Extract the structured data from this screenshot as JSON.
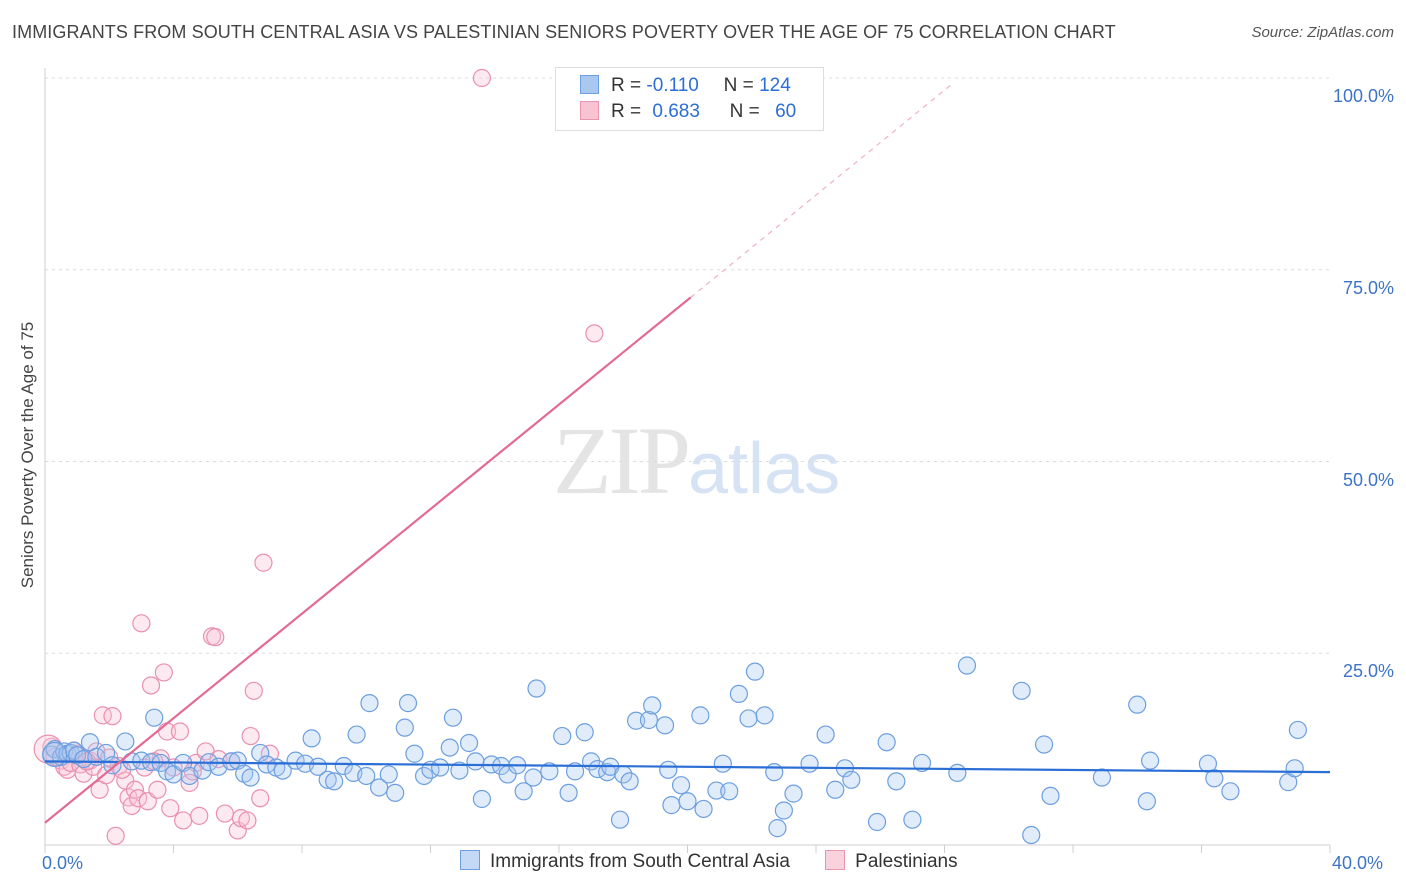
{
  "title": "IMMIGRANTS FROM SOUTH CENTRAL ASIA VS PALESTINIAN SENIORS POVERTY OVER THE AGE OF 75 CORRELATION CHART",
  "source": "Source: ZipAtlas.com",
  "watermark": {
    "zip": "ZIP",
    "atlas": "atlas"
  },
  "legend": {
    "r_label": "R =",
    "n_label": "N =",
    "rows": [
      {
        "r": "-0.110",
        "n": "124",
        "color": "#a9c8f0",
        "border": "#6c9fe0"
      },
      {
        "r": "0.683",
        "n": "60",
        "color": "#f8c4d4",
        "border": "#ea94b0"
      }
    ]
  },
  "colors": {
    "blue": "#6c9fe0",
    "pink": "#ea8fb0",
    "blue_line": "#2b6fd6",
    "pink_line": "#e36a95"
  },
  "chart_data": {
    "type": "scatter",
    "title": "IMMIGRANTS FROM SOUTH CENTRAL ASIA VS PALESTINIAN SENIORS POVERTY OVER THE AGE OF 75 CORRELATION CHART",
    "xlabel": "",
    "ylabel": "Seniors Poverty Over the Age of 75",
    "xlim": [
      0,
      40
    ],
    "ylim": [
      0,
      100
    ],
    "x_tick_labels": [
      "0.0%",
      "40.0%"
    ],
    "y_ticks": [
      25,
      50,
      75,
      100
    ],
    "y_tick_labels": [
      "25.0%",
      "50.0%",
      "75.0%",
      "100.0%"
    ],
    "grid": true,
    "legend_position": "top-center",
    "series": [
      {
        "name": "Immigrants from South Central Asia",
        "color": "#6c9fe0",
        "trend": {
          "x": [
            0,
            40
          ],
          "y": [
            10.9,
            9.5
          ]
        },
        "points": [
          [
            0.2,
            11.8
          ],
          [
            0.3,
            12.5
          ],
          [
            0.5,
            11.5
          ],
          [
            0.6,
            12.2
          ],
          [
            0.7,
            11.9
          ],
          [
            0.8,
            12.0
          ],
          [
            0.9,
            12.3
          ],
          [
            1.0,
            11.7
          ],
          [
            1.2,
            11.2
          ],
          [
            1.4,
            13.4
          ],
          [
            1.6,
            11.5
          ],
          [
            1.9,
            12.0
          ],
          [
            2.1,
            10.4
          ],
          [
            2.5,
            13.5
          ],
          [
            2.7,
            10.9
          ],
          [
            3.0,
            11.0
          ],
          [
            3.3,
            10.8
          ],
          [
            3.4,
            16.6
          ],
          [
            3.6,
            10.7
          ],
          [
            3.8,
            9.6
          ],
          [
            4.0,
            9.2
          ],
          [
            4.3,
            10.7
          ],
          [
            4.5,
            9.0
          ],
          [
            4.9,
            9.7
          ],
          [
            5.1,
            10.8
          ],
          [
            5.4,
            10.2
          ],
          [
            5.8,
            10.9
          ],
          [
            6.0,
            11.0
          ],
          [
            6.2,
            9.3
          ],
          [
            6.4,
            8.8
          ],
          [
            6.7,
            12.0
          ],
          [
            6.9,
            10.5
          ],
          [
            7.2,
            10.1
          ],
          [
            7.4,
            9.7
          ],
          [
            7.8,
            11.0
          ],
          [
            8.1,
            10.6
          ],
          [
            8.3,
            13.9
          ],
          [
            8.5,
            10.2
          ],
          [
            8.8,
            8.5
          ],
          [
            9.0,
            8.3
          ],
          [
            9.3,
            10.3
          ],
          [
            9.6,
            9.4
          ],
          [
            9.7,
            14.4
          ],
          [
            10.0,
            9.0
          ],
          [
            10.1,
            18.5
          ],
          [
            10.4,
            7.5
          ],
          [
            10.7,
            9.2
          ],
          [
            10.9,
            6.8
          ],
          [
            11.2,
            15.3
          ],
          [
            11.3,
            18.5
          ],
          [
            11.5,
            11.9
          ],
          [
            11.8,
            9.0
          ],
          [
            12.0,
            9.8
          ],
          [
            12.3,
            10.1
          ],
          [
            12.6,
            12.7
          ],
          [
            12.7,
            16.6
          ],
          [
            12.9,
            9.7
          ],
          [
            13.2,
            13.3
          ],
          [
            13.4,
            10.9
          ],
          [
            13.6,
            6.0
          ],
          [
            13.9,
            10.5
          ],
          [
            14.2,
            10.3
          ],
          [
            14.4,
            9.2
          ],
          [
            14.7,
            10.4
          ],
          [
            14.9,
            7.0
          ],
          [
            15.2,
            8.8
          ],
          [
            15.3,
            20.4
          ],
          [
            15.7,
            9.6
          ],
          [
            16.1,
            14.2
          ],
          [
            16.3,
            6.8
          ],
          [
            16.5,
            9.6
          ],
          [
            16.8,
            14.7
          ],
          [
            17.0,
            10.9
          ],
          [
            17.2,
            9.9
          ],
          [
            17.5,
            9.5
          ],
          [
            17.6,
            10.2
          ],
          [
            17.9,
            3.3
          ],
          [
            18.0,
            9.2
          ],
          [
            18.2,
            8.3
          ],
          [
            18.4,
            16.2
          ],
          [
            18.8,
            16.3
          ],
          [
            18.9,
            18.2
          ],
          [
            19.3,
            15.6
          ],
          [
            19.4,
            9.8
          ],
          [
            19.5,
            5.2
          ],
          [
            19.8,
            7.8
          ],
          [
            20.0,
            5.7
          ],
          [
            20.4,
            16.9
          ],
          [
            20.5,
            4.7
          ],
          [
            20.9,
            7.1
          ],
          [
            21.1,
            10.6
          ],
          [
            21.3,
            7.0
          ],
          [
            21.6,
            19.7
          ],
          [
            21.9,
            16.5
          ],
          [
            22.1,
            22.6
          ],
          [
            22.4,
            16.9
          ],
          [
            22.7,
            9.5
          ],
          [
            22.8,
            2.2
          ],
          [
            23.0,
            4.5
          ],
          [
            23.3,
            6.7
          ],
          [
            23.8,
            10.6
          ],
          [
            24.3,
            14.4
          ],
          [
            24.6,
            7.2
          ],
          [
            24.9,
            10.0
          ],
          [
            25.1,
            8.5
          ],
          [
            25.9,
            3.0
          ],
          [
            26.2,
            13.4
          ],
          [
            26.5,
            8.3
          ],
          [
            27.3,
            10.7
          ],
          [
            27.0,
            3.3
          ],
          [
            28.4,
            9.4
          ],
          [
            28.7,
            23.4
          ],
          [
            30.4,
            20.1
          ],
          [
            30.7,
            1.3
          ],
          [
            31.1,
            13.1
          ],
          [
            31.3,
            6.4
          ],
          [
            32.9,
            8.8
          ],
          [
            34.0,
            18.3
          ],
          [
            34.3,
            5.7
          ],
          [
            34.4,
            11.0
          ],
          [
            36.2,
            10.6
          ],
          [
            36.4,
            8.7
          ],
          [
            36.9,
            7.0
          ],
          [
            38.7,
            8.2
          ],
          [
            38.9,
            10.0
          ],
          [
            39.0,
            15.0
          ]
        ]
      },
      {
        "name": "Palestinians",
        "color": "#ea8fb0",
        "trend": {
          "x": [
            0,
            20.1
          ],
          "y": [
            2.9,
            71.4
          ]
        },
        "trend_ext": {
          "x": [
            20.1,
            28.2
          ],
          "y": [
            71.4,
            99.1
          ]
        },
        "points": [
          [
            0.2,
            12.8
          ],
          [
            0.3,
            11.5
          ],
          [
            0.5,
            11.0
          ],
          [
            0.6,
            10.2
          ],
          [
            0.7,
            9.8
          ],
          [
            0.8,
            10.7
          ],
          [
            1.0,
            11.9
          ],
          [
            1.1,
            10.5
          ],
          [
            1.2,
            9.3
          ],
          [
            1.4,
            11.0
          ],
          [
            1.5,
            10.2
          ],
          [
            1.6,
            12.2
          ],
          [
            1.7,
            7.2
          ],
          [
            1.8,
            16.9
          ],
          [
            1.9,
            9.1
          ],
          [
            2.1,
            16.8
          ],
          [
            2.2,
            1.2
          ],
          [
            2.3,
            10.3
          ],
          [
            2.5,
            8.4
          ],
          [
            2.6,
            6.2
          ],
          [
            2.7,
            5.1
          ],
          [
            2.8,
            7.2
          ],
          [
            2.9,
            6.1
          ],
          [
            3.0,
            28.9
          ],
          [
            3.1,
            10.1
          ],
          [
            3.2,
            5.7
          ],
          [
            3.3,
            20.8
          ],
          [
            3.5,
            7.2
          ],
          [
            3.6,
            11.3
          ],
          [
            3.7,
            22.5
          ],
          [
            3.8,
            14.8
          ],
          [
            3.9,
            4.8
          ],
          [
            4.0,
            10.1
          ],
          [
            4.2,
            14.8
          ],
          [
            4.3,
            3.2
          ],
          [
            4.5,
            8.1
          ],
          [
            4.7,
            10.7
          ],
          [
            4.8,
            3.8
          ],
          [
            5.0,
            12.2
          ],
          [
            5.2,
            27.2
          ],
          [
            5.3,
            27.1
          ],
          [
            5.4,
            11.2
          ],
          [
            5.6,
            4.1
          ],
          [
            5.8,
            10.9
          ],
          [
            6.0,
            1.9
          ],
          [
            6.1,
            3.5
          ],
          [
            6.3,
            3.2
          ],
          [
            6.4,
            14.2
          ],
          [
            6.5,
            20.1
          ],
          [
            6.7,
            6.1
          ],
          [
            6.8,
            36.8
          ],
          [
            7.0,
            11.9
          ],
          [
            13.6,
            100.0
          ],
          [
            17.1,
            66.7
          ],
          [
            0.9,
            12.3
          ],
          [
            1.3,
            10.9
          ],
          [
            2.0,
            11.4
          ],
          [
            2.4,
            9.8
          ],
          [
            3.4,
            10.9
          ],
          [
            4.6,
            9.6
          ]
        ]
      }
    ]
  }
}
